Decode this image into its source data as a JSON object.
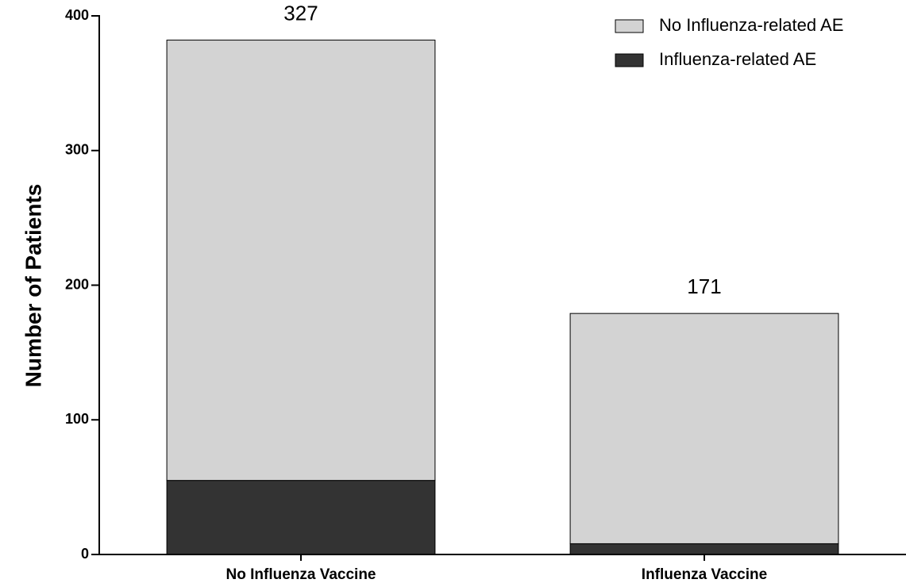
{
  "chart_data": {
    "type": "stacked_bar",
    "y_label": "Number of Patients",
    "categories": [
      "No Influenza Vaccine",
      "Influenza Vaccine"
    ],
    "series": [
      {
        "name": "Influenza-related AE",
        "color": "#333333",
        "values": [
          55,
          8
        ]
      },
      {
        "name": "No Influenza-related AE",
        "color": "#d3d3d3",
        "values": [
          327,
          171
        ]
      }
    ],
    "ylim": [
      0,
      400
    ],
    "yticks": [
      0,
      100,
      200,
      300,
      400
    ],
    "legend": "upper right"
  }
}
